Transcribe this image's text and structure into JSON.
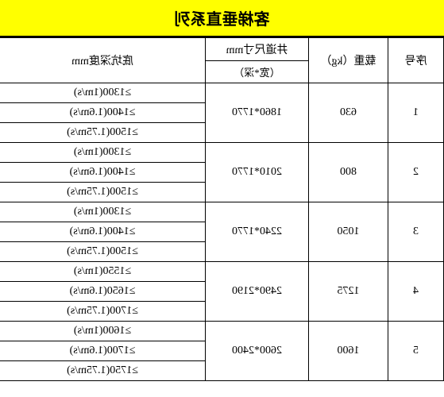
{
  "title": "客梯垂直系列",
  "headers": {
    "seq": "序号",
    "load": "载重（kg）",
    "shaft_top": "井道尺寸mm",
    "shaft_sub": "（宽*深）",
    "depth": "底坑深度mm"
  },
  "rows": [
    {
      "seq": "1",
      "load": "630",
      "shaft": "1860*1770",
      "depths": [
        "≥1300(1m/s)",
        "≥1400(1.6m/s)",
        "≥1500(1.75m/s)"
      ]
    },
    {
      "seq": "2",
      "load": "800",
      "shaft": "2010*1770",
      "depths": [
        "≥1300(1m/s)",
        "≥1400(1.6m/s)",
        "≥1500(1.75m/s)"
      ]
    },
    {
      "seq": "3",
      "load": "1050",
      "shaft": "2240*1770",
      "depths": [
        "≥1300(1m/s)",
        "≥1400(1.6m/s)",
        "≥1500(1.75m/s)"
      ]
    },
    {
      "seq": "4",
      "load": "1275",
      "shaft": "2490*2190",
      "depths": [
        "≥1550(1m/s)",
        "≥1650(1.6m/s)",
        "≥1700(1.75m/s)"
      ]
    },
    {
      "seq": "5",
      "load": "1600",
      "shaft": "2600*2400",
      "depths": [
        "≥1600(1m/s)",
        "≥1700(1.6m/s)",
        "≥1750(1.75m/s)"
      ]
    }
  ]
}
